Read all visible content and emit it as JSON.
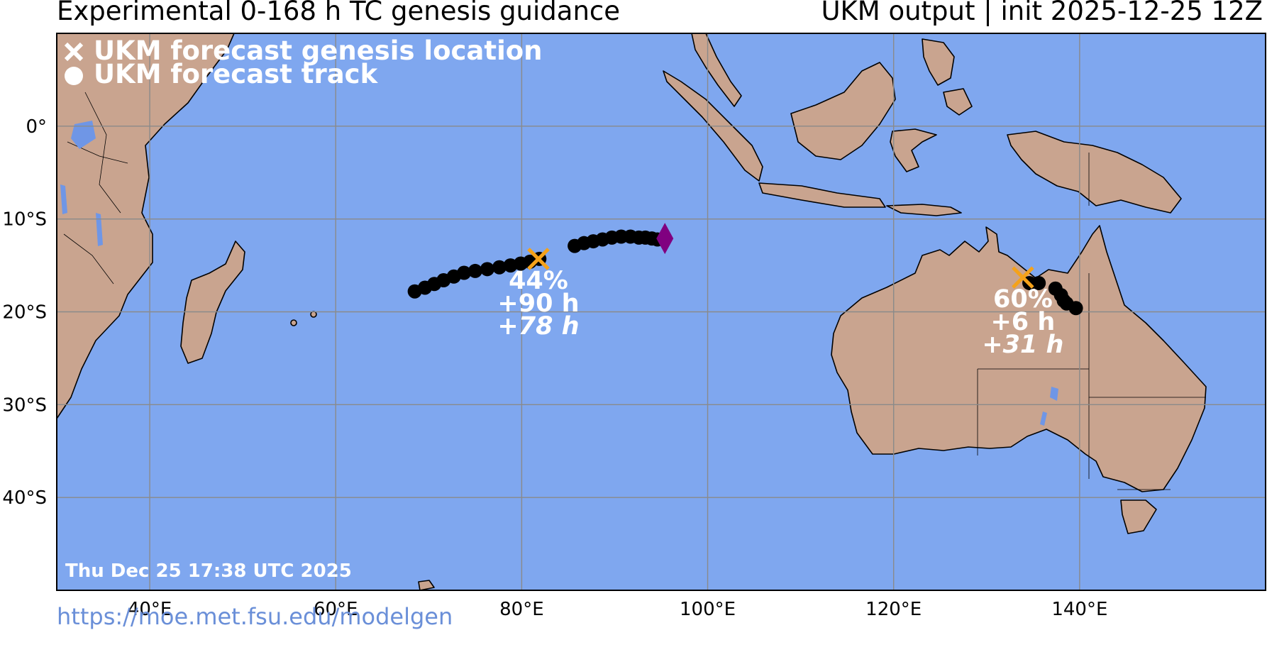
{
  "header": {
    "title": "Experimental 0-168 h TC genesis guidance",
    "model_info": "UKM output | init 2025-12-25 12Z"
  },
  "legend": {
    "genesis_label": "UKM forecast genesis location",
    "track_label": "UKM forecast track"
  },
  "map": {
    "lon_range": [
      30,
      160
    ],
    "lat_range": [
      -50,
      10
    ],
    "lon_ticks": [
      "40°E",
      "60°E",
      "80°E",
      "100°E",
      "120°E",
      "140°E"
    ],
    "lat_ticks": [
      "0°",
      "10°S",
      "20°S",
      "30°S",
      "40°S"
    ],
    "colors": {
      "ocean": "#7fa7ef",
      "land": "#c9a48f",
      "lakes": "#6f96e6",
      "grid": "#8a8a8a",
      "track": "#000000",
      "genesis": "#f5a21a",
      "end_marker": "#800080"
    }
  },
  "storms": [
    {
      "genesis": {
        "lon": 81.8,
        "lat": -14.3
      },
      "probability": "44%",
      "lead_time": "+90 h",
      "duration": "+78 h",
      "track": [
        [
          68.5,
          -17.8
        ],
        [
          69.6,
          -17.4
        ],
        [
          70.6,
          -17.0
        ],
        [
          71.6,
          -16.6
        ],
        [
          72.7,
          -16.2
        ],
        [
          73.8,
          -15.8
        ],
        [
          75.0,
          -15.6
        ],
        [
          76.3,
          -15.4
        ],
        [
          77.6,
          -15.2
        ],
        [
          78.8,
          -15.0
        ],
        [
          79.9,
          -14.8
        ],
        [
          80.9,
          -14.6
        ],
        [
          81.9,
          -14.3
        ],
        [
          85.7,
          -12.9
        ],
        [
          86.7,
          -12.6
        ],
        [
          87.7,
          -12.4
        ],
        [
          88.7,
          -12.2
        ],
        [
          89.7,
          -12.0
        ],
        [
          90.7,
          -11.9
        ],
        [
          91.7,
          -11.9
        ],
        [
          92.6,
          -12.0
        ],
        [
          93.3,
          -12.0
        ],
        [
          94.0,
          -12.1
        ],
        [
          94.6,
          -12.2
        ]
      ],
      "end": {
        "lon": 95.4,
        "lat": -12.1
      }
    },
    {
      "genesis": {
        "lon": 133.9,
        "lat": -16.3
      },
      "probability": "60%",
      "lead_time": "+6 h",
      "duration": "+31 h",
      "track": [
        [
          134.6,
          -16.9
        ],
        [
          135.6,
          -16.9
        ],
        [
          137.4,
          -17.5
        ],
        [
          138.0,
          -18.2
        ],
        [
          138.3,
          -18.8
        ],
        [
          138.6,
          -19.1
        ],
        [
          139.6,
          -19.6
        ]
      ]
    }
  ],
  "timestamp": "Thu Dec 25 17:38 UTC 2025",
  "url": "https://moe.met.fsu.edu/modelgen"
}
